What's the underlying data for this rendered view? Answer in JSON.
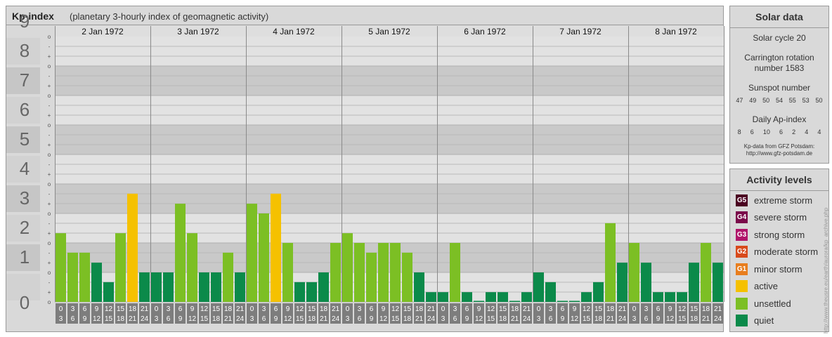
{
  "header": {
    "title": "Kp-index",
    "subtitle": "(planetary 3-hourly index of geomagnetic activity)"
  },
  "solar_data": {
    "title": "Solar data",
    "solar_cycle": "Solar cycle 20",
    "carrington_line1": "Carrington rotation",
    "carrington_line2": "number 1583",
    "sunspot_label": "Sunspot number",
    "sunspot_numbers": [
      "47",
      "49",
      "50",
      "54",
      "55",
      "53",
      "50"
    ],
    "ap_label": "Daily Ap-index",
    "ap_values": [
      "8",
      "6",
      "10",
      "6",
      "2",
      "4",
      "4"
    ],
    "source_line1": "Kp-data from GFZ Potsdam:",
    "source_line2": "http://www.gfz-potsdam.de"
  },
  "activity_levels": {
    "title": "Activity levels",
    "items": [
      {
        "badge": "G5",
        "label": "extreme storm",
        "color": "#4a0020"
      },
      {
        "badge": "G4",
        "label": "severe storm",
        "color": "#7a0a4a"
      },
      {
        "badge": "G3",
        "label": "strong storm",
        "color": "#b0156a"
      },
      {
        "badge": "G2",
        "label": "moderate storm",
        "color": "#d84a1c"
      },
      {
        "badge": "G1",
        "label": "minor storm",
        "color": "#e87e1e"
      },
      {
        "badge": "",
        "label": "active",
        "color": "#f5c100"
      },
      {
        "badge": "",
        "label": "unsettled",
        "color": "#7cbf24"
      },
      {
        "badge": "",
        "label": "quiet",
        "color": "#0b8a4a"
      }
    ]
  },
  "credit": "http://www.theusre.eu/earth/aurora/kp_archive.php",
  "chart_data": {
    "type": "bar",
    "title": "Kp-index",
    "ylim": [
      0,
      9
    ],
    "y_ticks": [
      "0",
      "1",
      "2",
      "3",
      "4",
      "5",
      "6",
      "7",
      "8",
      "9"
    ],
    "sub_ticks": [
      "+",
      "o",
      "-"
    ],
    "days": [
      "2 Jan 1972",
      "3 Jan 1972",
      "4 Jan 1972",
      "5 Jan 1972",
      "6 Jan 1972",
      "7 Jan 1972",
      "8 Jan 1972"
    ],
    "interval_start": [
      "0",
      "3",
      "6",
      "9",
      "12",
      "15",
      "18",
      "21"
    ],
    "interval_end": [
      "3",
      "6",
      "9",
      "12",
      "15",
      "18",
      "21",
      "24"
    ],
    "values": [
      2.33,
      1.67,
      1.67,
      1.33,
      0.67,
      2.33,
      3.67,
      1.0,
      1.0,
      1.0,
      3.33,
      2.33,
      1.0,
      1.0,
      1.67,
      1.0,
      3.33,
      3.0,
      3.67,
      2.0,
      0.67,
      0.67,
      1.0,
      2.0,
      2.33,
      2.0,
      1.67,
      2.0,
      2.0,
      1.67,
      1.0,
      0.33,
      0.33,
      2.0,
      0.33,
      0.0,
      0.33,
      0.33,
      0.0,
      0.33,
      1.0,
      0.67,
      0.0,
      0.0,
      0.33,
      0.67,
      2.67,
      1.33,
      2.0,
      1.33,
      0.33,
      0.33,
      0.33,
      1.33,
      2.0,
      1.33
    ],
    "colors": {
      "quiet": "#0b8a4a",
      "unsettled": "#7cbf24",
      "active": "#f5c100"
    }
  }
}
